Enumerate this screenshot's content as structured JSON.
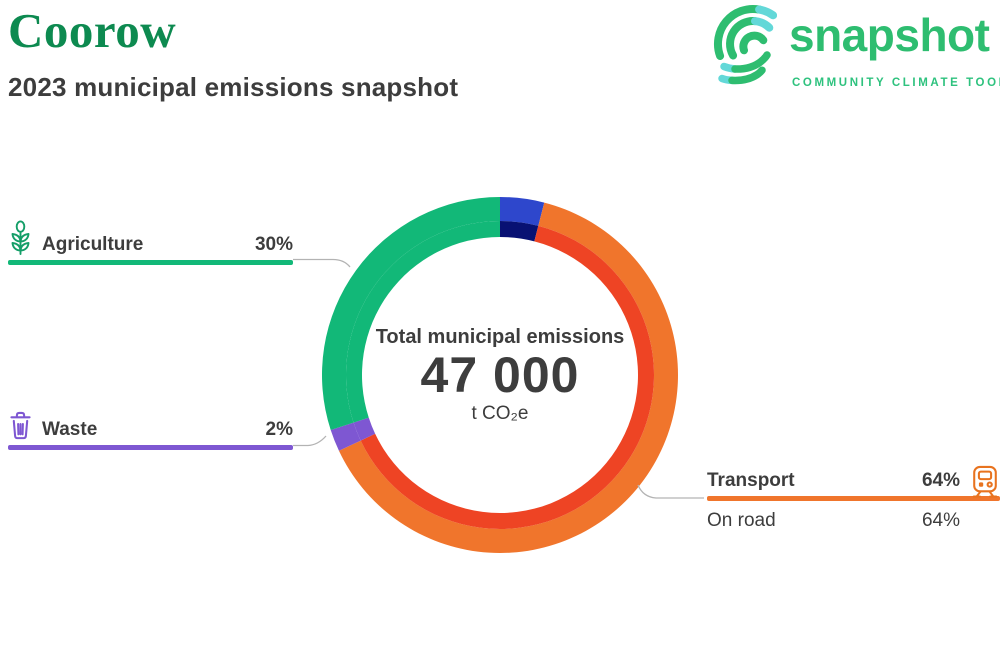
{
  "header": {
    "title": "Coorow",
    "subtitle": "2023 municipal emissions snapshot"
  },
  "logo": {
    "wordmark": "snapshot",
    "tagline": "COMMUNITY CLIMATE TOOL",
    "icon": "snapshot-arcs-icon",
    "brand_green": "#2ebd70",
    "accent_teal": "#63d8d8"
  },
  "chart_data": {
    "type": "pie",
    "variant": "donut",
    "title": "Total municipal emissions",
    "total_value": "47 000",
    "total_unit": "t CO₂e",
    "start_angle_deg": 0,
    "legend_position": "sides",
    "segments": [
      {
        "label": "",
        "pct": 4,
        "color": "#2e47cc",
        "sub_color": "#081173"
      },
      {
        "label": "Transport",
        "pct": 64,
        "color": "#f0752c",
        "sub_color": "#ee4424"
      },
      {
        "label": "Waste",
        "pct": 2,
        "color": "#7e57d2"
      },
      {
        "label": "Agriculture",
        "pct": 30,
        "color": "#12b878"
      }
    ]
  },
  "center": {
    "title": "Total municipal emissions",
    "value": "47 000",
    "unit": "t CO₂e"
  },
  "legend": {
    "agriculture": {
      "label": "Agriculture",
      "value": "30%",
      "icon": "plant-icon",
      "color": "#12b878"
    },
    "waste": {
      "label": "Waste",
      "value": "2%",
      "icon": "trash-icon",
      "color": "#7e57d2"
    },
    "transport": {
      "label": "Transport",
      "value": "64%",
      "icon": "train-icon",
      "color": "#f0752c",
      "sub_rows": [
        {
          "label": "On road",
          "value": "64%"
        }
      ]
    }
  },
  "colors": {
    "title_green": "#0d8a50",
    "text_dark": "#3d3d3d",
    "callout_gray": "#b3b3b3"
  }
}
